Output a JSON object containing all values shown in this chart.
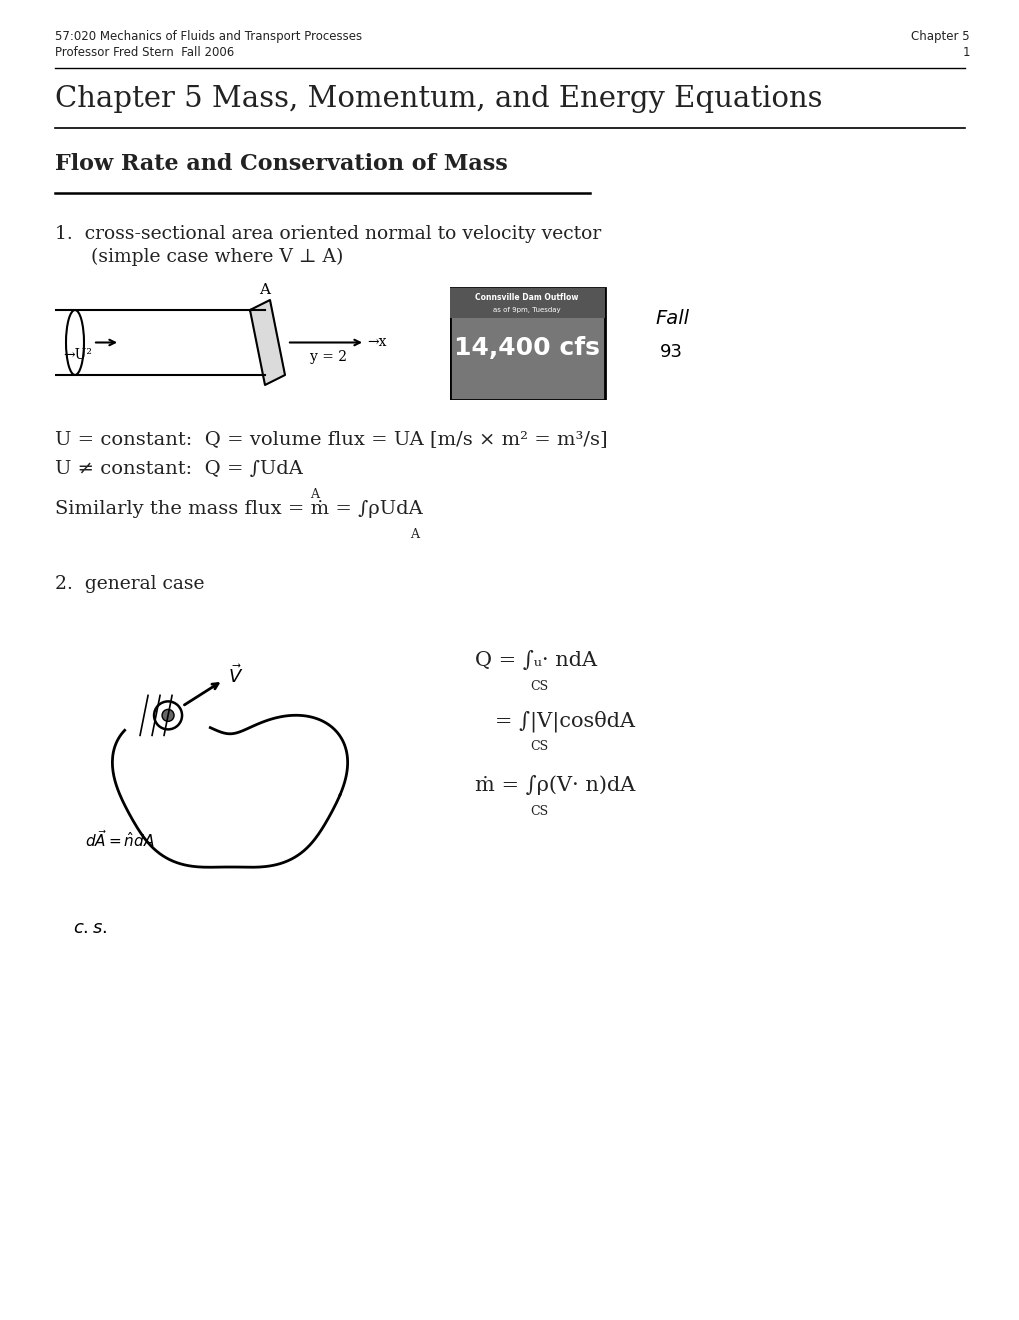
{
  "header_left_line1": "57:020 Mechanics of Fluids and Transport Processes",
  "header_left_line2": "Professor Fred Stern  Fall 2006",
  "header_right_line1": "Chapter 5",
  "header_right_line2": "1",
  "chapter_title": "Chapter 5 Mass, Momentum, and Energy Equations",
  "section_title": "Flow Rate and Conservation of Mass",
  "item1_line1": "1.  cross-sectional area oriented normal to velocity vector",
  "item1_line2": "      (simple case where V ⊥ A)",
  "eq1": "U = constant:  Q = volume flux = UA [m/s × m² = m³/s]",
  "eq2": "U ≠ constant:  Q = ∫UdA",
  "eq2_sub": "A",
  "eq3": "Similarly the mass flux = ṁ = ∫ρUdA",
  "eq3_sub": "A",
  "item2": "2.  general case",
  "eq4a": "Q = ∫ᵤ· ndA",
  "eq4a_sub": "CS",
  "eq4b": "   = ∫|V|cosθdA",
  "eq4b_sub": "CS",
  "eq5": "ṁ = ∫ρ(V· n)dA",
  "eq5_sub": "CS",
  "bg_color": "#ffffff",
  "text_color": "#222222",
  "font_size_header": 8.5,
  "font_size_title": 21,
  "font_size_section": 16,
  "font_size_body": 13.5,
  "font_size_eq": 14
}
